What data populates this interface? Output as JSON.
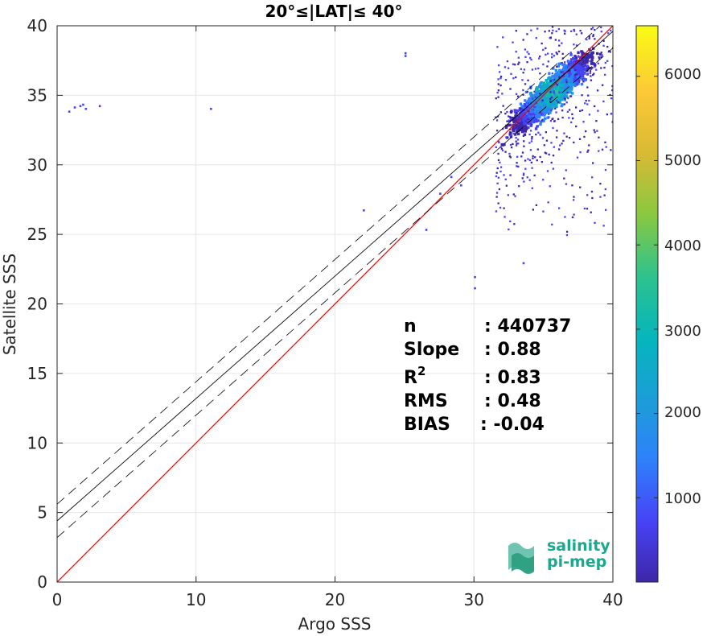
{
  "chart_data": {
    "type": "heatmap",
    "title": "20°≤|LAT|≤ 40°",
    "xlabel": "Argo SSS",
    "ylabel": "Satellite SSS",
    "xlim": [
      0,
      40
    ],
    "ylim": [
      0,
      40
    ],
    "x_ticks": [
      "0",
      "10",
      "20",
      "30",
      "40"
    ],
    "y_ticks": [
      "0",
      "5",
      "10",
      "15",
      "20",
      "25",
      "30",
      "35",
      "40"
    ],
    "grid": true,
    "colorbar": {
      "range": [
        0,
        6600
      ],
      "ticks": [
        "1000",
        "2000",
        "3000",
        "4000",
        "5000",
        "6000"
      ],
      "tick_values": [
        1000,
        2000,
        3000,
        4000,
        5000,
        6000
      ],
      "colormap": [
        "#3e26a8",
        "#4743f6",
        "#2f81fb",
        "#1b9ed7",
        "#05b6bc",
        "#2ec28d",
        "#89c840",
        "#d8ba34",
        "#fcc836",
        "#f9fb15"
      ]
    },
    "lines": {
      "one_to_one": {
        "color": "#ff0000",
        "x": [
          0,
          40
        ],
        "y": [
          0,
          40
        ]
      },
      "regression": {
        "color": "#000000",
        "intercept": 4.4,
        "slope": 0.88
      },
      "rms_bounds": {
        "color": "#000000",
        "style": "dashed",
        "offset": 1.2
      }
    },
    "stats": [
      {
        "label": "n",
        "value": ": 440737"
      },
      {
        "label": "Slope",
        "value": ": 0.88"
      },
      {
        "label": "R",
        "sup": "2",
        "value": ": 0.83"
      },
      {
        "label": "RMS",
        "value": ": 0.48"
      },
      {
        "label": "BIAS",
        "value": ": -0.04"
      }
    ],
    "density_cluster": {
      "center": [
        35.5,
        35.3
      ],
      "peak_count": 6500
    }
  },
  "logo": {
    "line1": "salinity",
    "line2": "pi-mep",
    "color": "#1aa88f"
  }
}
